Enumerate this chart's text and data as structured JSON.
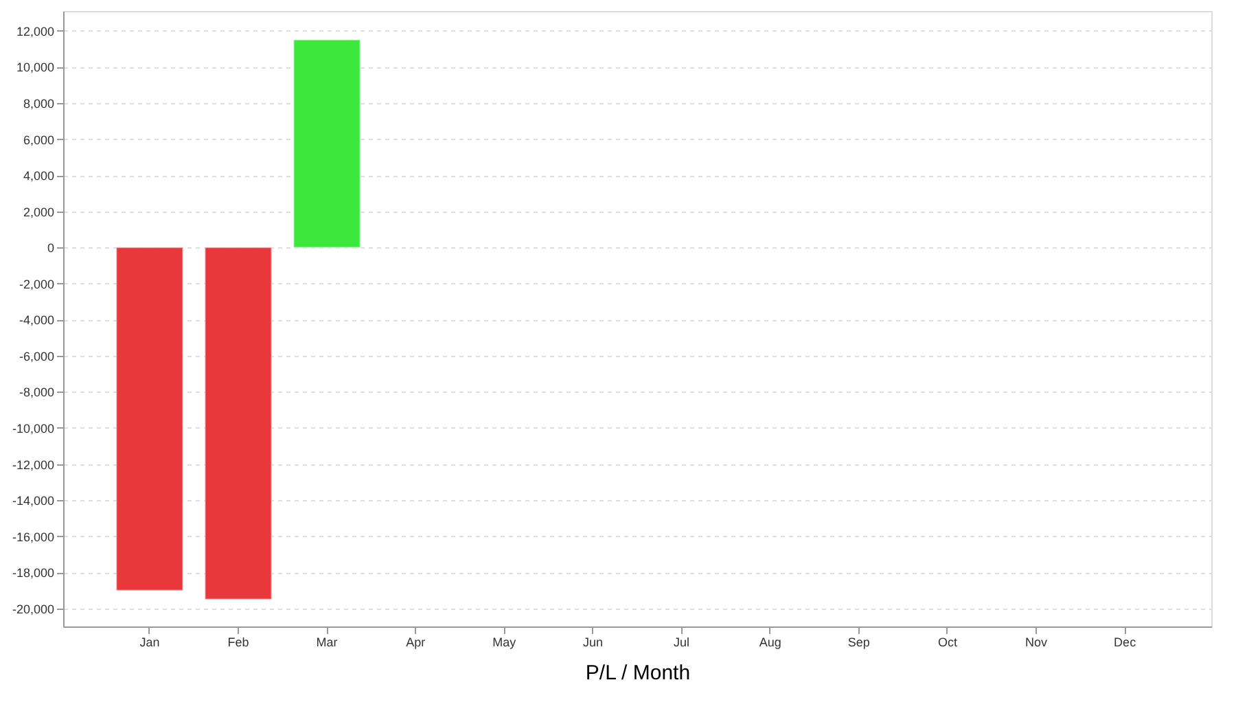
{
  "chart_data": {
    "type": "bar",
    "xlabel": "P/L / Month",
    "categories": [
      "Jan",
      "Feb",
      "Mar",
      "Apr",
      "May",
      "Jun",
      "Jul",
      "Aug",
      "Sep",
      "Oct",
      "Nov",
      "Dec"
    ],
    "values": [
      -19000,
      -19500,
      11500,
      null,
      null,
      null,
      null,
      null,
      null,
      null,
      null,
      null
    ],
    "colors": [
      "#e8383b",
      "#e8383b",
      "#3ce83c",
      "#e8383b",
      "#e8383b",
      "#e8383b",
      "#e8383b",
      "#e8383b",
      "#e8383b",
      "#e8383b",
      "#e8383b",
      "#e8383b"
    ],
    "ylim": [
      -21000,
      13100
    ],
    "yticks": [
      {
        "value": -20000,
        "label": "-20,000"
      },
      {
        "value": -18000,
        "label": "-18,000"
      },
      {
        "value": -16000,
        "label": "-16,000"
      },
      {
        "value": -14000,
        "label": "-14,000"
      },
      {
        "value": -12000,
        "label": "-12,000"
      },
      {
        "value": -10000,
        "label": "-10,000"
      },
      {
        "value": -8000,
        "label": "-8,000"
      },
      {
        "value": -6000,
        "label": "-6,000"
      },
      {
        "value": -4000,
        "label": "-4,000"
      },
      {
        "value": -2000,
        "label": "-2,000"
      },
      0,
      {
        "value": 2000,
        "label": "2,000"
      },
      {
        "value": 4000,
        "label": "4,000"
      },
      {
        "value": 6000,
        "label": "6,000"
      },
      {
        "value": 8000,
        "label": "8,000"
      },
      {
        "value": 10000,
        "label": "10,000"
      },
      {
        "value": 12000,
        "label": "12,000"
      }
    ],
    "grid": "y"
  }
}
